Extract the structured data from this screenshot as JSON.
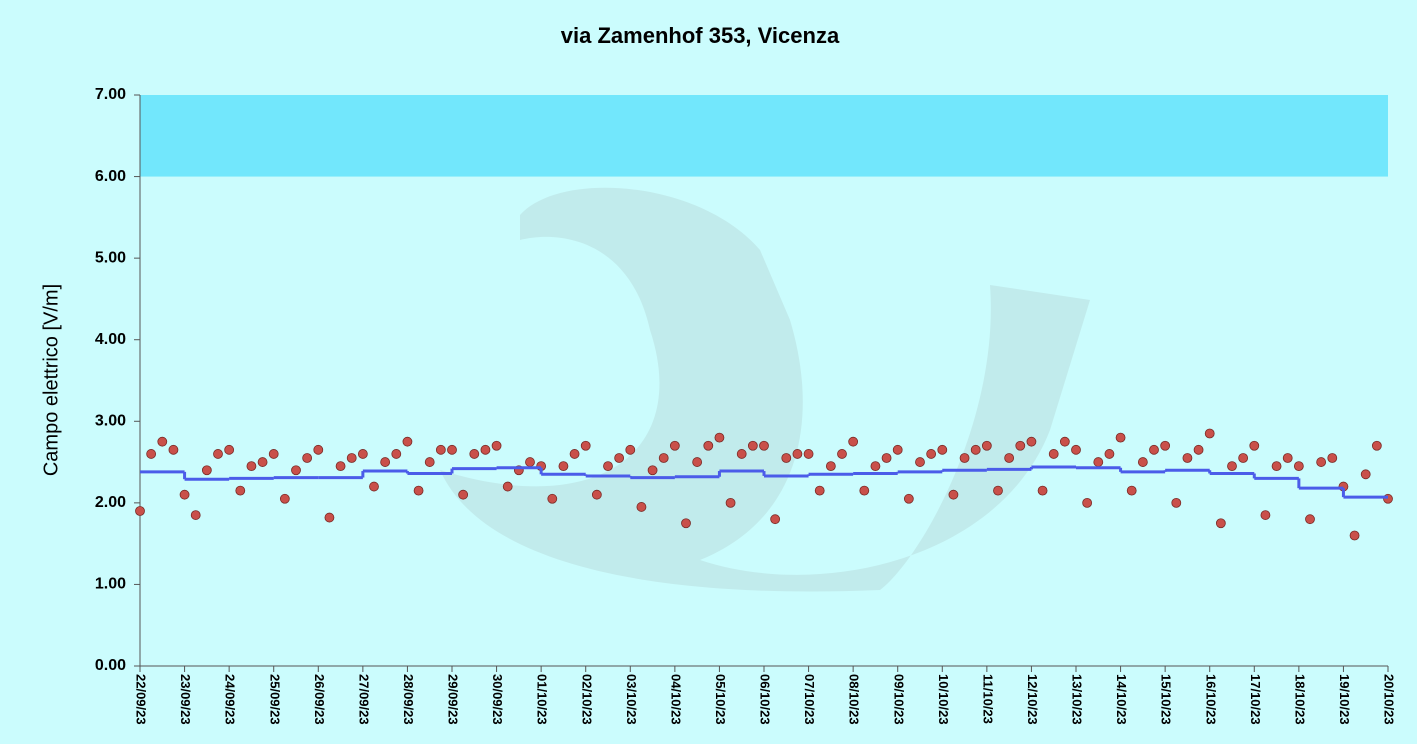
{
  "chart_data": {
    "type": "scatter",
    "title": "via Zamenhof  353, Vicenza",
    "y_label": "Campo elettrico [V/m]",
    "background": "#cbfcfd",
    "bands": [
      {
        "from": 6,
        "to": 7,
        "color": "#72e7fc"
      }
    ],
    "xlim": [
      0,
      672
    ],
    "xticks": [
      {
        "value": 0,
        "label": "22/09/23"
      },
      {
        "value": 24,
        "label": "23/09/23"
      },
      {
        "value": 48,
        "label": "24/09/23"
      },
      {
        "value": 72,
        "label": "25/09/23"
      },
      {
        "value": 96,
        "label": "26/09/23"
      },
      {
        "value": 120,
        "label": "27/09/23"
      },
      {
        "value": 144,
        "label": "28/09/23"
      },
      {
        "value": 168,
        "label": "29/09/23"
      },
      {
        "value": 192,
        "label": "30/09/23"
      },
      {
        "value": 216,
        "label": "01/10/23"
      },
      {
        "value": 240,
        "label": "02/10/23"
      },
      {
        "value": 264,
        "label": "03/10/23"
      },
      {
        "value": 288,
        "label": "04/10/23"
      },
      {
        "value": 312,
        "label": "05/10/23"
      },
      {
        "value": 336,
        "label": "06/10/23"
      },
      {
        "value": 360,
        "label": "07/10/23"
      },
      {
        "value": 384,
        "label": "08/10/23"
      },
      {
        "value": 408,
        "label": "09/10/23"
      },
      {
        "value": 432,
        "label": "10/10/23"
      },
      {
        "value": 456,
        "label": "11/10/23"
      },
      {
        "value": 480,
        "label": "12/10/23"
      },
      {
        "value": 504,
        "label": "13/10/23"
      },
      {
        "value": 528,
        "label": "14/10/23"
      },
      {
        "value": 552,
        "label": "15/10/23"
      },
      {
        "value": 576,
        "label": "16/10/23"
      },
      {
        "value": 600,
        "label": "17/10/23"
      },
      {
        "value": 624,
        "label": "18/10/23"
      },
      {
        "value": 648,
        "label": "19/10/23"
      },
      {
        "value": 672,
        "label": "20/10/23"
      }
    ],
    "ylim": [
      0,
      7
    ],
    "yticks": [
      {
        "value": 0,
        "label": "0.00"
      },
      {
        "value": 1,
        "label": "1.00"
      },
      {
        "value": 2,
        "label": "2.00"
      },
      {
        "value": 3,
        "label": "3.00"
      },
      {
        "value": 4,
        "label": "4.00"
      },
      {
        "value": 5,
        "label": "5.00"
      },
      {
        "value": 6,
        "label": "6.00"
      },
      {
        "value": 7,
        "label": "7.00"
      }
    ],
    "series": [
      {
        "type": "scatter",
        "color": "#c9504a",
        "x": [
          0,
          6,
          12,
          18,
          24,
          30,
          36,
          42,
          48,
          54,
          60,
          66,
          72,
          78,
          84,
          90,
          96,
          102,
          108,
          114,
          120,
          126,
          132,
          138,
          144,
          150,
          156,
          162,
          168,
          174,
          180,
          186,
          192,
          198,
          204,
          210,
          216,
          222,
          228,
          234,
          240,
          246,
          252,
          258,
          264,
          270,
          276,
          282,
          288,
          294,
          300,
          306,
          312,
          318,
          324,
          330,
          336,
          342,
          348,
          354,
          360,
          366,
          372,
          378,
          384,
          390,
          396,
          402,
          408,
          414,
          420,
          426,
          432,
          438,
          444,
          450,
          456,
          462,
          468,
          474,
          480,
          486,
          492,
          498,
          504,
          510,
          516,
          522,
          528,
          534,
          540,
          546,
          552,
          558,
          564,
          570,
          576,
          582,
          588,
          594,
          600,
          606,
          612,
          618,
          624,
          630,
          636,
          642,
          648,
          654,
          660,
          666,
          672
        ],
        "values": [
          1.9,
          2.6,
          2.75,
          2.65,
          2.1,
          1.85,
          2.4,
          2.6,
          2.65,
          2.15,
          2.45,
          2.5,
          2.6,
          2.05,
          2.4,
          2.55,
          2.65,
          1.82,
          2.45,
          2.55,
          2.6,
          2.2,
          2.5,
          2.6,
          2.75,
          2.15,
          2.5,
          2.65,
          2.65,
          2.1,
          2.6,
          2.65,
          2.7,
          2.2,
          2.4,
          2.5,
          2.45,
          2.05,
          2.45,
          2.6,
          2.7,
          2.1,
          2.45,
          2.55,
          2.65,
          1.95,
          2.4,
          2.55,
          2.7,
          1.75,
          2.5,
          2.7,
          2.8,
          2.0,
          2.6,
          2.7,
          2.7,
          1.8,
          2.55,
          2.6,
          2.6,
          2.15,
          2.45,
          2.6,
          2.75,
          2.15,
          2.45,
          2.55,
          2.65,
          2.05,
          2.5,
          2.6,
          2.65,
          2.1,
          2.55,
          2.65,
          2.7,
          2.15,
          2.55,
          2.7,
          2.75,
          2.15,
          2.6,
          2.75,
          2.65,
          2.0,
          2.5,
          2.6,
          2.8,
          2.15,
          2.5,
          2.65,
          2.7,
          2.0,
          2.55,
          2.65,
          2.85,
          1.75,
          2.45,
          2.55,
          2.7,
          1.85,
          2.45,
          2.55,
          2.45,
          1.8,
          2.5,
          2.55,
          2.2,
          1.6,
          2.35,
          2.7,
          2.05
        ]
      },
      {
        "type": "step",
        "color": "#4b5ce9",
        "x": [
          0,
          24,
          48,
          72,
          96,
          120,
          144,
          168,
          192,
          216,
          240,
          264,
          288,
          312,
          336,
          360,
          384,
          408,
          432,
          456,
          480,
          504,
          528,
          552,
          576,
          600,
          624,
          648
        ],
        "values": [
          2.38,
          2.29,
          2.3,
          2.31,
          2.31,
          2.39,
          2.36,
          2.42,
          2.43,
          2.35,
          2.33,
          2.31,
          2.32,
          2.39,
          2.33,
          2.35,
          2.36,
          2.38,
          2.4,
          2.41,
          2.44,
          2.43,
          2.38,
          2.4,
          2.36,
          2.3,
          2.18,
          2.07
        ]
      }
    ]
  }
}
